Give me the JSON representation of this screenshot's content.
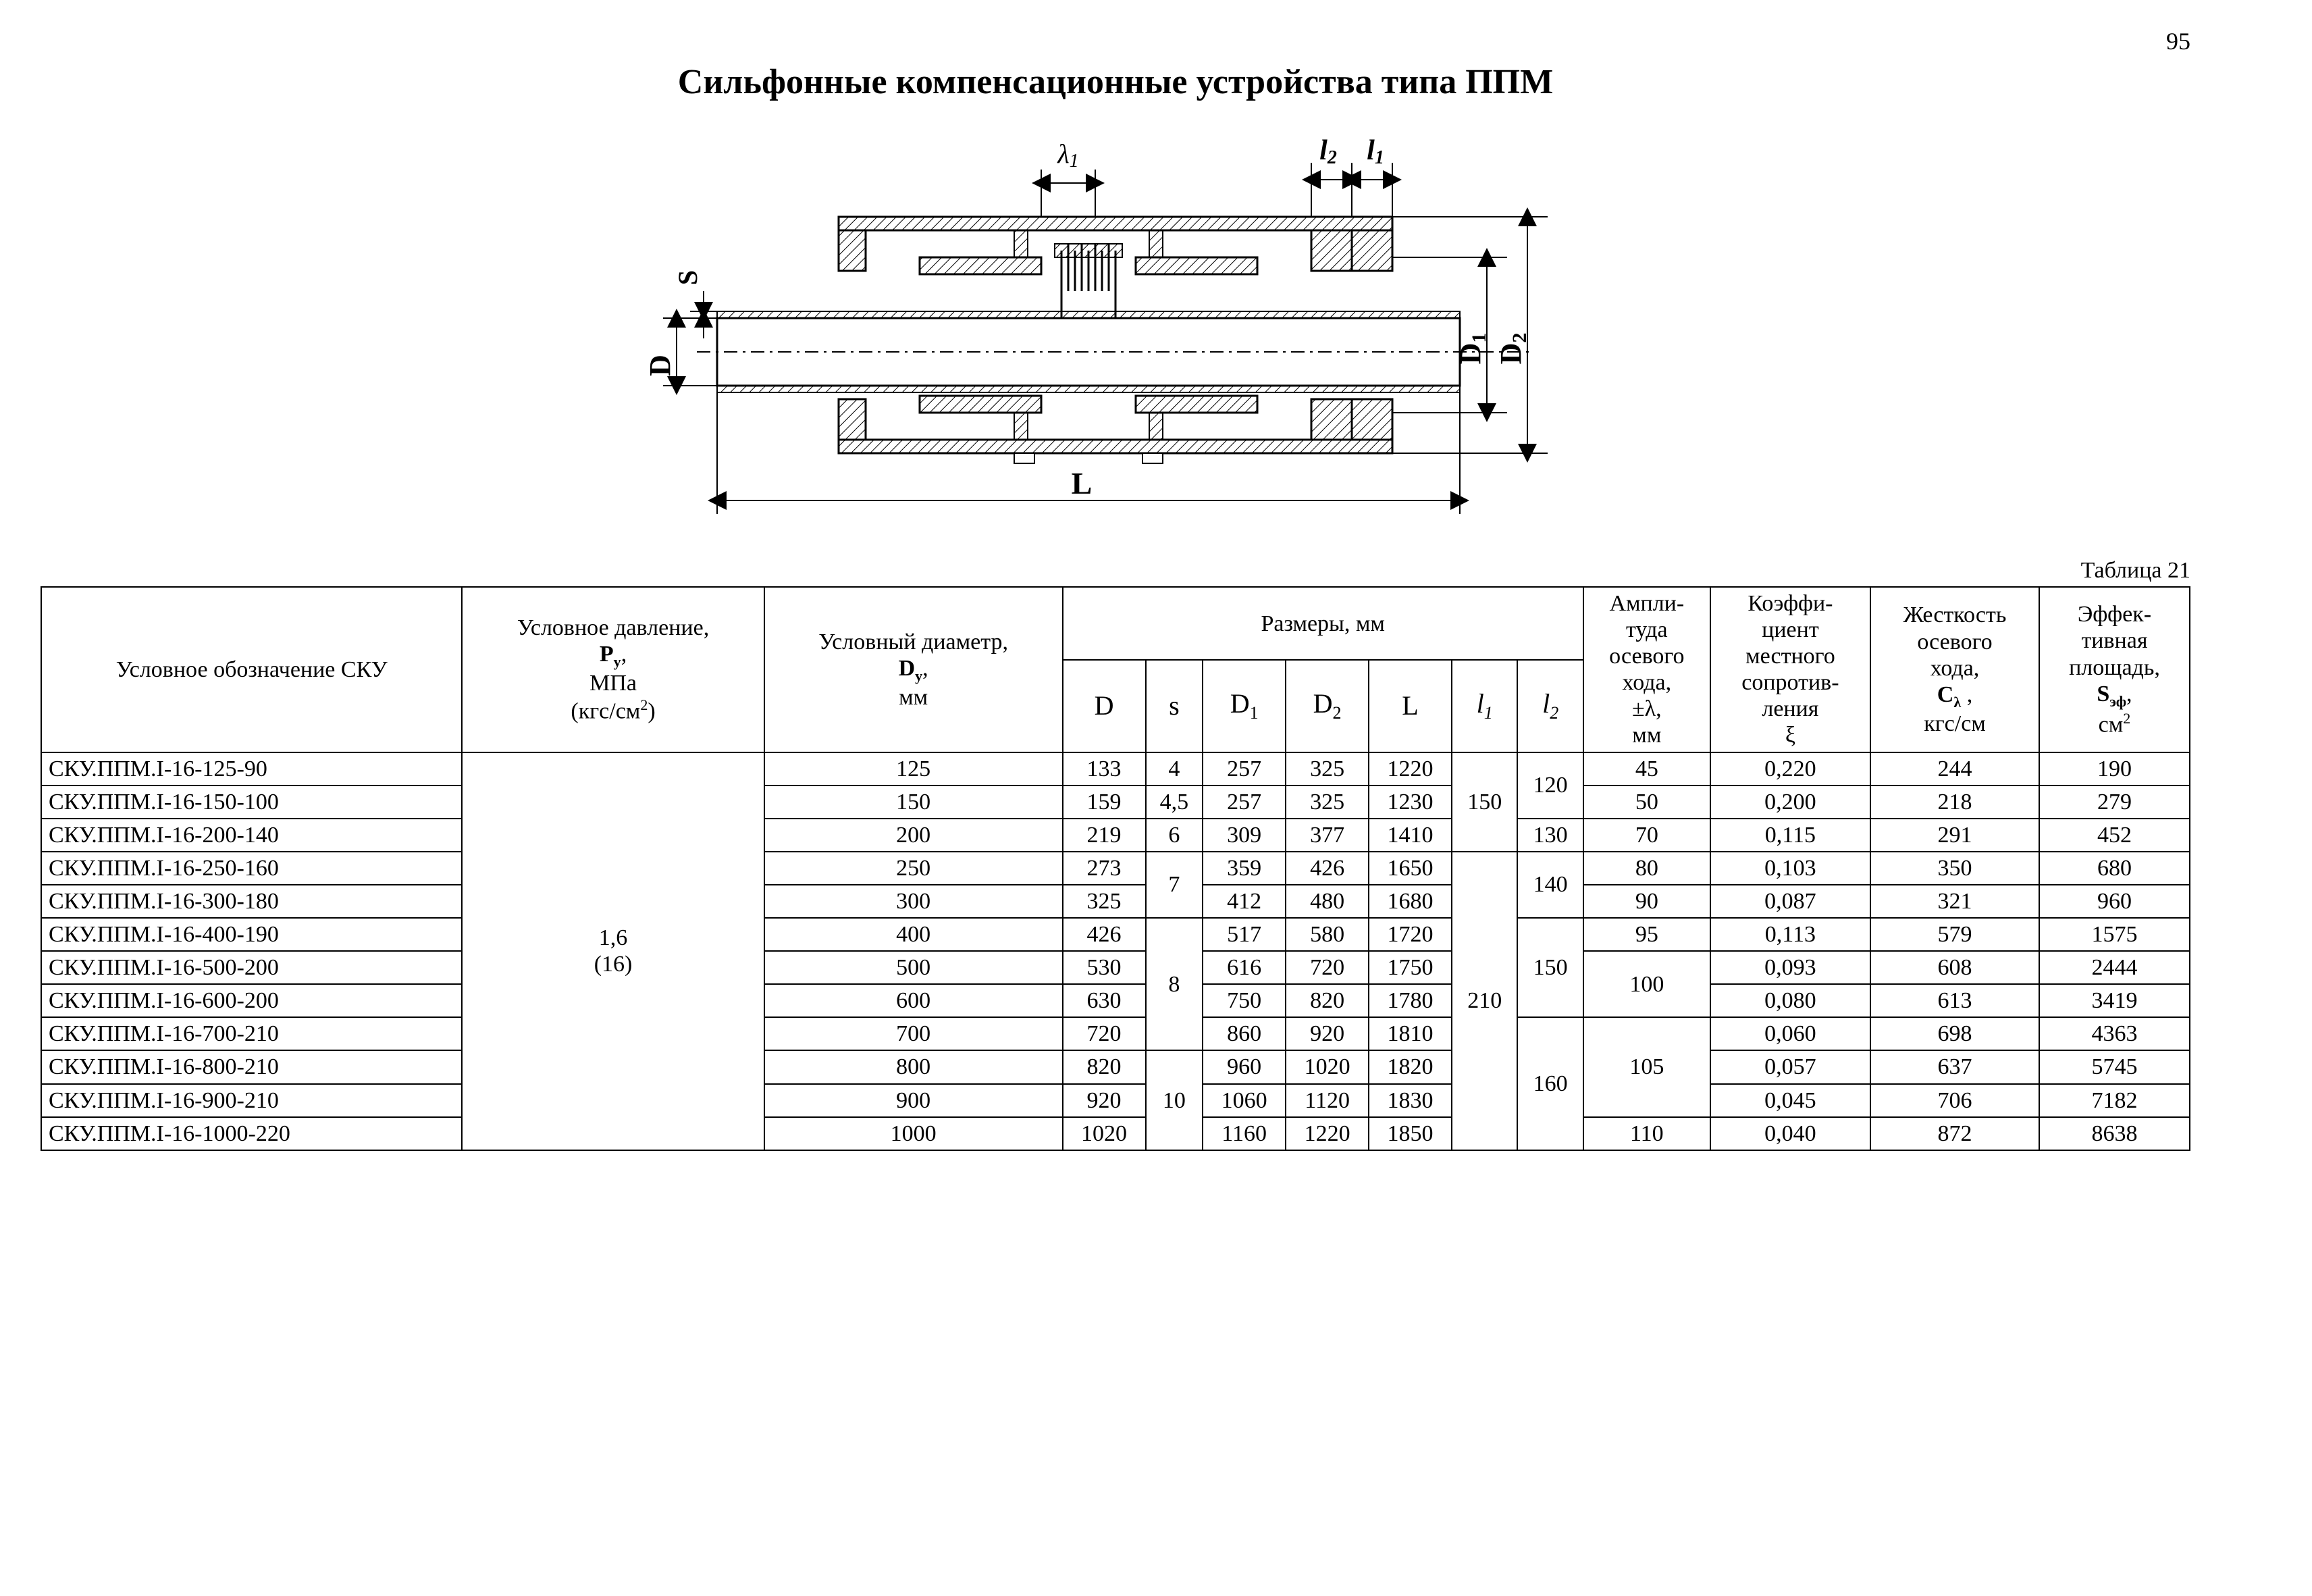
{
  "page_number": "95",
  "title": "Сильфонные компенсационные устройства типа ППМ",
  "table_caption": "Таблица 21",
  "diagram": {
    "labels": {
      "lambda1": "λ₁",
      "l2": "l",
      "l2_sub": "2",
      "l1": "l",
      "l1_sub": "1",
      "S": "S",
      "D": "D",
      "D1": "D",
      "D1_sub": "1",
      "D2": "D",
      "D2_sub": "2",
      "L": "L"
    },
    "style": {
      "stroke": "#000000",
      "stroke_width": 3,
      "font_size": 42,
      "hatch_spacing": 8
    }
  },
  "table": {
    "headers": {
      "sku": "Условное обозначение СКУ",
      "pressure_html": "Условное давление,<br><b>P<sub>у</sub></b>,<br>МПа<br>(кгс/см<sup>2</sup>)",
      "dy_html": "Условный диаметр,<br><b>D<sub>y</sub></b>,<br>мм",
      "dims": "Размеры, мм",
      "D": "D",
      "s": "s",
      "D1_html": "D<sub>1</sub>",
      "D2_html": "D<sub>2</sub>",
      "L": "L",
      "l1_html": "<i>l<sub>1</sub></i>",
      "l2_html": "<i>l<sub>2</sub></i>",
      "ampl_html": "Ампли-<br>туда<br>осевого<br>хода,<br>±λ,<br>мм",
      "coef_html": "Коэффи-<br>циент<br>местного<br>сопротив-<br>ления<br>ξ",
      "stiff_html": "Жесткость<br>осевого<br>хода,<br><b>C<sub>λ</sub></b> ,<br>кгс/см",
      "area_html": "Эффек-<br>тивная<br>площадь,<br><b>S<sub>эф</sub></b>,<br>см<sup>2</sup>"
    },
    "pressure": "1,6<br>(16)",
    "rows": [
      {
        "sku": "СКУ.ППМ.I-16-125-90",
        "Dy": "125",
        "D": "133",
        "s": "4",
        "D1": "257",
        "D2": "325",
        "L": "1220",
        "lambda": "45",
        "xi": "0,220",
        "C": "244",
        "S": "190"
      },
      {
        "sku": "СКУ.ППМ.I-16-150-100",
        "Dy": "150",
        "D": "159",
        "s": "4,5",
        "D1": "257",
        "D2": "325",
        "L": "1230",
        "lambda": "50",
        "xi": "0,200",
        "C": "218",
        "S": "279"
      },
      {
        "sku": "СКУ.ППМ.I-16-200-140",
        "Dy": "200",
        "D": "219",
        "s": "6",
        "D1": "309",
        "D2": "377",
        "L": "1410",
        "lambda": "70",
        "xi": "0,115",
        "C": "291",
        "S": "452"
      },
      {
        "sku": "СКУ.ППМ.I-16-250-160",
        "Dy": "250",
        "D": "273",
        "D1": "359",
        "D2": "426",
        "L": "1650",
        "lambda": "80",
        "xi": "0,103",
        "C": "350",
        "S": "680"
      },
      {
        "sku": "СКУ.ППМ.I-16-300-180",
        "Dy": "300",
        "D": "325",
        "D1": "412",
        "D2": "480",
        "L": "1680",
        "lambda": "90",
        "xi": "0,087",
        "C": "321",
        "S": "960"
      },
      {
        "sku": "СКУ.ППМ.I-16-400-190",
        "Dy": "400",
        "D": "426",
        "D1": "517",
        "D2": "580",
        "L": "1720",
        "lambda": "95",
        "xi": "0,113",
        "C": "579",
        "S": "1575"
      },
      {
        "sku": "СКУ.ППМ.I-16-500-200",
        "Dy": "500",
        "D": "530",
        "D1": "616",
        "D2": "720",
        "L": "1750",
        "xi": "0,093",
        "C": "608",
        "S": "2444"
      },
      {
        "sku": "СКУ.ППМ.I-16-600-200",
        "Dy": "600",
        "D": "630",
        "D1": "750",
        "D2": "820",
        "L": "1780",
        "xi": "0,080",
        "C": "613",
        "S": "3419"
      },
      {
        "sku": "СКУ.ППМ.I-16-700-210",
        "Dy": "700",
        "D": "720",
        "D1": "860",
        "D2": "920",
        "L": "1810",
        "xi": "0,060",
        "C": "698",
        "S": "4363"
      },
      {
        "sku": "СКУ.ППМ.I-16-800-210",
        "Dy": "800",
        "D": "820",
        "D1": "960",
        "D2": "1020",
        "L": "1820",
        "xi": "0,057",
        "C": "637",
        "S": "5745"
      },
      {
        "sku": "СКУ.ППМ.I-16-900-210",
        "Dy": "900",
        "D": "920",
        "D1": "1060",
        "D2": "1120",
        "L": "1830",
        "xi": "0,045",
        "C": "706",
        "S": "7182"
      },
      {
        "sku": "СКУ.ППМ.I-16-1000-220",
        "Dy": "1000",
        "D": "1020",
        "D1": "1160",
        "D2": "1220",
        "L": "1850",
        "xi": "0,040",
        "C": "872",
        "S": "8638"
      }
    ],
    "merged": {
      "l1_group1": "150",
      "l1_group2": "210",
      "l2_a": "120",
      "l2_b": "130",
      "l2_c": "140",
      "l2_d": "150",
      "l2_e": "160",
      "s_7": "7",
      "s_8": "8",
      "s_10": "10",
      "lambda_100": "100",
      "lambda_105": "105",
      "lambda_110": "110"
    }
  }
}
